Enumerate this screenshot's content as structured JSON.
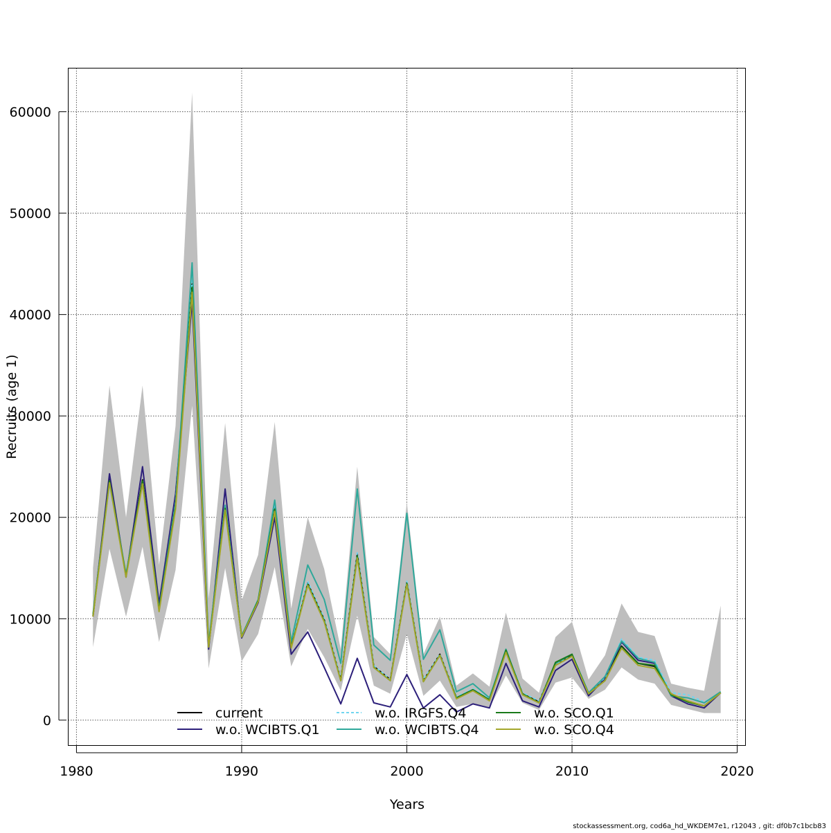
{
  "chart_data": {
    "type": "line",
    "title": "",
    "xlabel": "Years",
    "ylabel": "Recruits (age 1)",
    "xlim": [
      1979.5,
      2020.5
    ],
    "ylim": [
      -2500,
      64300
    ],
    "x_ticks": [
      1980,
      1990,
      2000,
      2010,
      2020
    ],
    "y_ticks": [
      0,
      10000,
      20000,
      30000,
      40000,
      50000,
      60000
    ],
    "grid": true,
    "legend_position": "bottom-center",
    "footer": "stockassessment.org, cod6a_hd_WKDEM7e1, r12043 , git: df0b7c1bcb83",
    "band_color": "#bebebe",
    "x": [
      1981,
      1982,
      1983,
      1984,
      1985,
      1986,
      1987,
      1988,
      1989,
      1990,
      1991,
      1992,
      1993,
      1994,
      1995,
      1996,
      1997,
      1998,
      1999,
      2000,
      2001,
      2002,
      2003,
      2004,
      2005,
      2006,
      2007,
      2008,
      2009,
      2010,
      2011,
      2012,
      2013,
      2014,
      2015,
      2016,
      2017,
      2018,
      2019
    ],
    "band": {
      "lower": [
        7200,
        16900,
        10200,
        17100,
        7700,
        14800,
        31000,
        5100,
        15000,
        5800,
        8500,
        15100,
        5300,
        9000,
        6200,
        2900,
        10300,
        3400,
        2600,
        8500,
        2400,
        3900,
        1300,
        1600,
        1200,
        4400,
        1700,
        1000,
        3700,
        4200,
        2100,
        3000,
        5200,
        4000,
        3600,
        1500,
        1100,
        700,
        700
      ],
      "upper": [
        15000,
        33000,
        20000,
        33000,
        15300,
        29000,
        61900,
        12000,
        29300,
        11800,
        16300,
        29400,
        11000,
        20000,
        14900,
        7000,
        25000,
        8200,
        6500,
        21500,
        6500,
        10200,
        3400,
        4600,
        3300,
        10600,
        4100,
        2700,
        8200,
        9700,
        4000,
        6400,
        11500,
        8700,
        8300,
        3600,
        3200,
        2900,
        11300
      ]
    },
    "series": [
      {
        "name": "current",
        "color": "#000000",
        "dash": "",
        "values": [
          10300,
          23700,
          14200,
          23700,
          10900,
          21100,
          43000,
          7300,
          21000,
          8300,
          11800,
          21000,
          7200,
          13500,
          9900,
          4000,
          16400,
          5300,
          4000,
          13600,
          3900,
          6500,
          2200,
          3000,
          2000,
          6900,
          2600,
          1800,
          5600,
          6400,
          2600,
          4000,
          7300,
          5600,
          5300,
          2600,
          1800,
          1400,
          2700
        ]
      },
      {
        "name": "w.o. WCIBTS.Q1",
        "color": "#2c1f7a",
        "dash": "",
        "values": [
          10200,
          24300,
          14100,
          25000,
          11500,
          22300,
          41300,
          7000,
          22800,
          8100,
          11600,
          20000,
          6500,
          8700,
          5200,
          1600,
          6100,
          1700,
          1300,
          4500,
          1200,
          2500,
          800,
          1600,
          1200,
          5600,
          1900,
          1300,
          4900,
          6000,
          2400,
          4100,
          7700,
          5900,
          5600,
          2400,
          1600,
          1200,
          2700
        ]
      },
      {
        "name": "w.o. IRGFS.Q4",
        "color": "#70d6f0",
        "dash": "4,3",
        "values": [
          10400,
          23200,
          14300,
          23400,
          10800,
          21500,
          44000,
          7400,
          21200,
          8300,
          11900,
          21300,
          7400,
          13700,
          10000,
          4100,
          16500,
          5400,
          4000,
          13700,
          4000,
          6500,
          2300,
          3100,
          2100,
          7000,
          2700,
          1900,
          5500,
          6500,
          2700,
          4200,
          8000,
          6200,
          5900,
          2700,
          2500,
          1800,
          2700
        ]
      },
      {
        "name": "w.o. WCIBTS.Q4",
        "color": "#2ea89a",
        "dash": "",
        "values": [
          10500,
          23500,
          14400,
          23500,
          11000,
          21400,
          45100,
          7600,
          21200,
          8300,
          11900,
          21700,
          7700,
          15300,
          11900,
          5600,
          22800,
          7400,
          5900,
          20400,
          6000,
          8900,
          2800,
          3600,
          2200,
          7000,
          2500,
          1700,
          5600,
          6500,
          2700,
          4300,
          7800,
          6100,
          5700,
          2400,
          2200,
          1700,
          2800
        ]
      },
      {
        "name": "w.o. SCO.Q1",
        "color": "#1a7a1a",
        "dash": "",
        "values": [
          10300,
          23600,
          14200,
          23600,
          10900,
          21000,
          42700,
          7300,
          20900,
          8200,
          11800,
          20800,
          7200,
          13400,
          9800,
          3900,
          16200,
          5200,
          3900,
          13500,
          3800,
          6400,
          2200,
          3000,
          2000,
          6900,
          2600,
          1700,
          5700,
          6500,
          2600,
          3900,
          7200,
          5600,
          5400,
          2500,
          1800,
          1400,
          2700
        ]
      },
      {
        "name": "w.o. SCO.Q4",
        "color": "#a3a62a",
        "dash": "",
        "values": [
          10200,
          23400,
          14100,
          23300,
          10700,
          20800,
          42200,
          7200,
          20700,
          8200,
          11700,
          20600,
          7100,
          13300,
          9700,
          3900,
          16000,
          5200,
          3900,
          13400,
          3800,
          6400,
          2100,
          2900,
          1900,
          6700,
          2500,
          1700,
          5400,
          6300,
          2600,
          3900,
          7100,
          5400,
          5100,
          2600,
          1900,
          1400,
          2700
        ]
      }
    ]
  }
}
